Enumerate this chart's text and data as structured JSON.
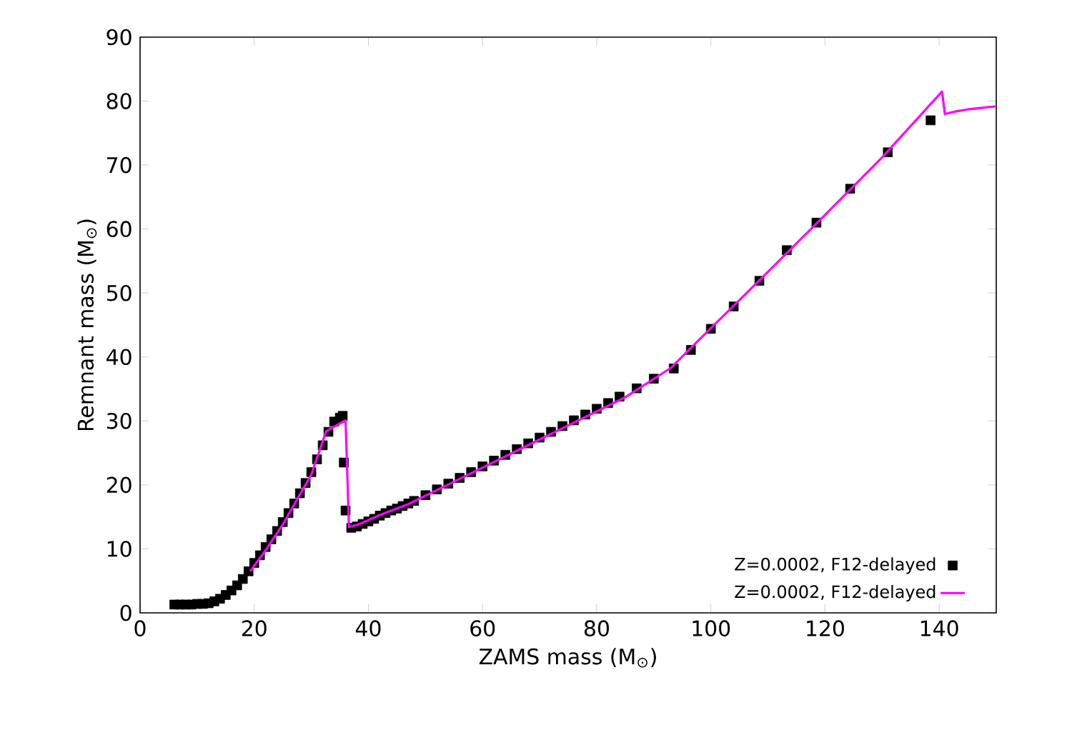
{
  "chart_data": {
    "type": "scatter",
    "xlabel": "ZAMS mass (M$_{⊙}$)",
    "ylabel": "Remnant mass (M$_{⊙}$)",
    "xlim": [
      0,
      150
    ],
    "ylim": [
      0,
      90
    ],
    "xticks": [
      0,
      20,
      40,
      60,
      80,
      100,
      120,
      140
    ],
    "yticks": [
      0,
      10,
      20,
      30,
      40,
      50,
      60,
      70,
      80,
      90
    ],
    "legend": "bottom right",
    "series": [
      {
        "name": "Z=0.0002, F12-delayed",
        "marker": "square",
        "color": "#000000",
        "x": [
          6,
          7,
          8,
          9,
          10,
          11,
          12,
          13,
          14,
          15,
          16,
          17,
          18,
          19,
          20,
          21,
          22,
          23,
          24,
          25,
          26,
          27,
          28,
          29,
          30,
          31,
          32,
          33,
          34,
          35,
          35.5,
          35.7,
          36,
          37,
          38,
          39,
          40,
          41,
          42,
          43,
          44,
          45,
          46,
          47,
          48,
          50,
          52,
          54,
          56,
          58,
          60,
          62,
          64,
          66,
          68,
          70,
          72,
          74,
          76,
          78,
          80,
          82,
          84,
          87,
          90,
          93.5,
          96.5,
          100,
          104,
          108.5,
          113.3,
          118.5,
          124.4,
          131,
          138.5
        ],
        "values": [
          1.3,
          1.3,
          1.3,
          1.3,
          1.4,
          1.4,
          1.5,
          1.8,
          2.2,
          2.8,
          3.5,
          4.3,
          5.3,
          6.5,
          7.8,
          9,
          10.3,
          11.5,
          12.8,
          14.2,
          15.6,
          17.1,
          18.7,
          20.3,
          22,
          24,
          26.2,
          28.3,
          29.9,
          30.5,
          30.8,
          23.5,
          16,
          13.3,
          13.5,
          13.9,
          14.3,
          14.7,
          15.2,
          15.6,
          16,
          16.3,
          16.7,
          17.1,
          17.5,
          18.4,
          19.3,
          20.2,
          21.1,
          22,
          22.9,
          23.8,
          24.7,
          25.6,
          26.5,
          27.4,
          28.3,
          29.2,
          30.1,
          31,
          31.9,
          32.8,
          33.8,
          35.1,
          36.6,
          38.2,
          41.1,
          44.4,
          47.9,
          51.9,
          56.7,
          61,
          66.3,
          72,
          77
        ]
      },
      {
        "name": "Z=0.0002, F12-delayed",
        "type": "line",
        "marker": "none",
        "color": "#ff00ff",
        "x": [
          19.3,
          22,
          25,
          28,
          30,
          32.6,
          36,
          36.6,
          38.5,
          42,
          47,
          55,
          65,
          75,
          85,
          93,
          100,
          110,
          120,
          130,
          140.5,
          141,
          143,
          145,
          147,
          150
        ],
        "values": [
          6.5,
          9.8,
          13.8,
          18.5,
          21.6,
          28.4,
          30.1,
          13.4,
          13.9,
          15.3,
          17,
          20.5,
          24.9,
          29.3,
          33.7,
          38.3,
          44.5,
          53.3,
          62.2,
          71.2,
          81.5,
          78,
          78.4,
          78.7,
          78.9,
          79.2
        ]
      }
    ]
  }
}
